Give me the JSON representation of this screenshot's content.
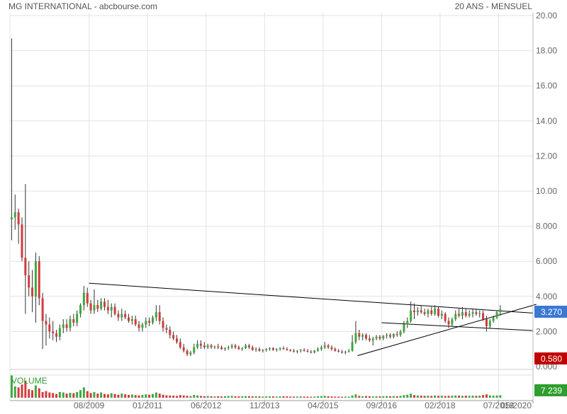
{
  "header": {
    "title": "MG INTERNATIONAL - abcbourse.com",
    "period": "20 ANS - MENSUEL"
  },
  "colors": {
    "up": "#3fa83f",
    "down": "#d23c3c",
    "grid": "#e3e3e3",
    "text": "#666666",
    "last_badge": "#3b78d4",
    "low_badge": "#c00000",
    "volume_badge": "#2e9e2e",
    "volume_label": "#2e9e2e",
    "trendline": "#000000"
  },
  "badges": {
    "last": "3.270",
    "low": "0.580",
    "volume": "7 239"
  },
  "volume_label": "VOLUME",
  "chart_data": {
    "type": "candlestick",
    "ylim": [
      0,
      20
    ],
    "yticks": [
      0,
      2,
      4,
      6,
      8,
      10,
      12,
      14,
      16,
      18,
      20
    ],
    "ytick_labels": [
      "0.000",
      "2.000",
      "4.000",
      "6.000",
      "8.000",
      "10.00",
      "12.00",
      "14.00",
      "16.00",
      "18.00",
      "20.00"
    ],
    "xtick_labels": [
      "08/2009",
      "01/2011",
      "06/2012",
      "11/2013",
      "04/2015",
      "09/2016",
      "02/2018",
      "07/2019",
      "05/2020"
    ],
    "xlim": [
      "2007-09",
      "2020-05"
    ],
    "xticks": [
      "2009-08",
      "2011-01",
      "2012-06",
      "2013-11",
      "2015-04",
      "2016-09",
      "2018-02",
      "2019-07",
      "2020-05"
    ],
    "start": "2007-09",
    "candles": [
      [
        8.4,
        18.7,
        7.2,
        8.5
      ],
      [
        8.5,
        9.8,
        7.8,
        8.8
      ],
      [
        8.8,
        9.0,
        7.0,
        8.1
      ],
      [
        8.1,
        8.5,
        6.0,
        6.2
      ],
      [
        6.2,
        10.4,
        3.0,
        5.2
      ],
      [
        5.2,
        6.0,
        4.0,
        4.5
      ],
      [
        4.5,
        5.5,
        3.1,
        4.0
      ],
      [
        4.0,
        6.5,
        2.5,
        6.0
      ],
      [
        6.0,
        6.3,
        3.5,
        3.9
      ],
      [
        3.9,
        4.2,
        1.0,
        2.6
      ],
      [
        2.6,
        3.0,
        1.2,
        2.4
      ],
      [
        2.4,
        2.8,
        1.6,
        2.0
      ],
      [
        2.0,
        2.6,
        1.5,
        1.9
      ],
      [
        1.9,
        2.1,
        1.4,
        1.7
      ],
      [
        1.7,
        2.4,
        1.5,
        2.2
      ],
      [
        2.2,
        2.7,
        1.9,
        2.4
      ],
      [
        2.4,
        2.7,
        2.0,
        2.2
      ],
      [
        2.2,
        2.9,
        2.0,
        2.7
      ],
      [
        2.7,
        3.0,
        2.3,
        2.5
      ],
      [
        2.5,
        3.2,
        2.3,
        3.0
      ],
      [
        3.0,
        3.6,
        2.8,
        3.5
      ],
      [
        3.5,
        4.6,
        3.2,
        4.2
      ],
      [
        4.2,
        4.5,
        3.4,
        3.6
      ],
      [
        3.6,
        3.8,
        3.0,
        3.2
      ],
      [
        3.2,
        4.4,
        3.0,
        3.5
      ],
      [
        3.5,
        3.8,
        3.1,
        3.3
      ],
      [
        3.3,
        3.9,
        3.2,
        3.7
      ],
      [
        3.7,
        3.9,
        3.2,
        3.4
      ],
      [
        3.4,
        3.8,
        3.0,
        3.2
      ],
      [
        3.2,
        3.6,
        2.8,
        3.4
      ],
      [
        3.4,
        3.6,
        2.9,
        3.0
      ],
      [
        3.0,
        3.2,
        2.6,
        2.8
      ],
      [
        2.8,
        3.3,
        2.6,
        3.0
      ],
      [
        3.0,
        3.2,
        2.7,
        2.8
      ],
      [
        2.8,
        3.0,
        2.5,
        2.6
      ],
      [
        2.6,
        2.9,
        2.4,
        2.7
      ],
      [
        2.7,
        2.9,
        2.3,
        2.4
      ],
      [
        2.4,
        2.6,
        2.0,
        2.2
      ],
      [
        2.2,
        2.5,
        2.0,
        2.4
      ],
      [
        2.4,
        2.8,
        2.2,
        2.6
      ],
      [
        2.6,
        2.8,
        2.3,
        2.5
      ],
      [
        2.5,
        2.9,
        2.4,
        2.8
      ],
      [
        2.8,
        3.5,
        2.6,
        3.1
      ],
      [
        3.1,
        3.5,
        2.4,
        2.6
      ],
      [
        2.6,
        2.8,
        2.0,
        2.2
      ],
      [
        2.2,
        2.4,
        1.9,
        2.1
      ],
      [
        2.1,
        2.3,
        1.6,
        1.8
      ],
      [
        1.8,
        2.0,
        1.5,
        1.6
      ],
      [
        1.6,
        1.8,
        1.3,
        1.4
      ],
      [
        1.4,
        1.6,
        1.0,
        1.1
      ],
      [
        1.1,
        1.3,
        0.8,
        0.9
      ],
      [
        0.9,
        1.0,
        0.6,
        0.7
      ],
      [
        0.7,
        0.9,
        0.6,
        0.8
      ],
      [
        0.8,
        1.3,
        0.7,
        1.1
      ],
      [
        1.1,
        1.5,
        1.0,
        1.3
      ],
      [
        1.3,
        1.5,
        1.0,
        1.2
      ],
      [
        1.2,
        1.4,
        1.0,
        1.1
      ],
      [
        1.1,
        1.3,
        1.0,
        1.2
      ],
      [
        1.2,
        1.3,
        1.0,
        1.1
      ],
      [
        1.1,
        1.2,
        1.0,
        1.15
      ],
      [
        1.15,
        1.3,
        1.0,
        1.1
      ],
      [
        1.1,
        1.2,
        0.95,
        1.0
      ],
      [
        1.0,
        1.1,
        0.9,
        1.05
      ],
      [
        1.05,
        1.2,
        0.95,
        1.1
      ],
      [
        1.1,
        1.3,
        1.0,
        1.2
      ],
      [
        1.2,
        1.3,
        1.0,
        1.1
      ],
      [
        1.1,
        1.2,
        0.95,
        1.0
      ],
      [
        1.0,
        1.1,
        0.9,
        1.05
      ],
      [
        1.05,
        1.3,
        1.0,
        1.2
      ],
      [
        1.2,
        1.3,
        1.0,
        1.1
      ],
      [
        1.1,
        1.2,
        0.9,
        0.95
      ],
      [
        0.95,
        1.1,
        0.85,
        1.0
      ],
      [
        1.0,
        1.1,
        0.85,
        0.9
      ],
      [
        0.9,
        1.0,
        0.8,
        0.95
      ],
      [
        0.95,
        1.05,
        0.85,
        1.0
      ],
      [
        1.0,
        1.1,
        0.9,
        1.05
      ],
      [
        1.05,
        1.1,
        0.9,
        0.95
      ],
      [
        0.95,
        1.05,
        0.85,
        1.0
      ],
      [
        1.0,
        1.1,
        0.9,
        1.05
      ],
      [
        1.05,
        1.15,
        0.95,
        1.0
      ],
      [
        1.0,
        1.1,
        0.9,
        0.95
      ],
      [
        0.95,
        1.0,
        0.85,
        0.9
      ],
      [
        0.9,
        1.0,
        0.8,
        0.85
      ],
      [
        0.85,
        0.95,
        0.75,
        0.9
      ],
      [
        0.9,
        1.0,
        0.8,
        0.95
      ],
      [
        0.95,
        1.05,
        0.85,
        0.9
      ],
      [
        0.9,
        1.0,
        0.8,
        0.85
      ],
      [
        0.85,
        0.95,
        0.75,
        0.8
      ],
      [
        0.8,
        0.95,
        0.75,
        0.9
      ],
      [
        0.9,
        1.1,
        0.85,
        1.0
      ],
      [
        1.0,
        1.2,
        0.9,
        1.1
      ],
      [
        1.1,
        1.4,
        1.0,
        1.2
      ],
      [
        1.2,
        1.3,
        1.0,
        1.1
      ],
      [
        1.1,
        1.2,
        0.9,
        1.0
      ],
      [
        1.0,
        1.1,
        0.85,
        0.9
      ],
      [
        0.9,
        1.0,
        0.8,
        0.85
      ],
      [
        0.85,
        0.95,
        0.75,
        0.8
      ],
      [
        0.8,
        0.9,
        0.7,
        0.85
      ],
      [
        0.85,
        1.0,
        0.8,
        0.9
      ],
      [
        0.9,
        1.8,
        0.85,
        1.4
      ],
      [
        1.4,
        2.6,
        1.3,
        1.9
      ],
      [
        1.9,
        2.1,
        1.5,
        1.7
      ],
      [
        1.7,
        1.9,
        1.5,
        1.8
      ],
      [
        1.8,
        1.9,
        1.5,
        1.6
      ],
      [
        1.6,
        1.8,
        1.4,
        1.5
      ],
      [
        1.5,
        1.7,
        1.2,
        1.6
      ],
      [
        1.6,
        1.8,
        1.5,
        1.7
      ],
      [
        1.7,
        1.8,
        1.5,
        1.6
      ],
      [
        1.6,
        1.8,
        1.5,
        1.75
      ],
      [
        1.75,
        1.9,
        1.6,
        1.8
      ],
      [
        1.8,
        1.9,
        1.6,
        1.7
      ],
      [
        1.7,
        1.9,
        1.6,
        1.85
      ],
      [
        1.85,
        2.0,
        1.7,
        1.8
      ],
      [
        1.8,
        2.1,
        1.7,
        2.0
      ],
      [
        2.0,
        2.6,
        1.9,
        2.4
      ],
      [
        2.4,
        2.8,
        2.2,
        2.6
      ],
      [
        2.6,
        3.7,
        2.5,
        3.2
      ],
      [
        3.2,
        3.6,
        2.7,
        3.1
      ],
      [
        3.1,
        3.4,
        2.9,
        3.2
      ],
      [
        3.2,
        3.5,
        3.0,
        3.1
      ],
      [
        3.1,
        3.3,
        2.9,
        3.0
      ],
      [
        3.0,
        3.3,
        2.8,
        3.2
      ],
      [
        3.2,
        3.4,
        2.9,
        3.0
      ],
      [
        3.0,
        3.5,
        2.9,
        3.3
      ],
      [
        3.3,
        3.4,
        2.8,
        2.9
      ],
      [
        2.9,
        3.2,
        2.7,
        3.0
      ],
      [
        3.0,
        3.1,
        2.5,
        2.6
      ],
      [
        2.6,
        2.8,
        2.2,
        2.4
      ],
      [
        2.4,
        2.8,
        2.3,
        2.7
      ],
      [
        2.7,
        3.2,
        2.6,
        3.0
      ],
      [
        3.0,
        3.3,
        2.8,
        2.9
      ],
      [
        2.9,
        3.4,
        2.7,
        3.1
      ],
      [
        3.1,
        3.3,
        2.8,
        2.9
      ],
      [
        2.9,
        3.2,
        2.8,
        3.0
      ],
      [
        3.0,
        3.3,
        2.8,
        3.1
      ],
      [
        3.1,
        3.3,
        2.9,
        3.0
      ],
      [
        3.0,
        3.2,
        2.8,
        3.05
      ],
      [
        3.05,
        3.2,
        2.6,
        2.7
      ],
      [
        2.7,
        2.9,
        2.0,
        2.3
      ],
      [
        2.3,
        2.7,
        2.2,
        2.6
      ],
      [
        2.6,
        2.9,
        2.5,
        2.8
      ],
      [
        2.8,
        3.2,
        2.7,
        3.1
      ],
      [
        3.1,
        3.5,
        2.9,
        3.27
      ]
    ],
    "volume": [
      120,
      60,
      55,
      70,
      90,
      45,
      40,
      65,
      50,
      30,
      35,
      28,
      25,
      20,
      30,
      28,
      22,
      26,
      24,
      30,
      40,
      55,
      35,
      25,
      30,
      22,
      28,
      20,
      18,
      24,
      20,
      16,
      22,
      18,
      15,
      17,
      14,
      12,
      15,
      18,
      16,
      20,
      28,
      22,
      16,
      13,
      12,
      11,
      10,
      14,
      12,
      10,
      9,
      15,
      12,
      9,
      8,
      9,
      8,
      7,
      8,
      7,
      8,
      9,
      10,
      8,
      7,
      8,
      9,
      8,
      7,
      8,
      7,
      6,
      7,
      8,
      7,
      6,
      7,
      8,
      7,
      6,
      6,
      6,
      7,
      6,
      6,
      5,
      6,
      8,
      9,
      10,
      8,
      7,
      6,
      6,
      5,
      6,
      6,
      12,
      18,
      10,
      8,
      9,
      8,
      7,
      8,
      7,
      8,
      9,
      8,
      9,
      8,
      10,
      14,
      16,
      22,
      14,
      12,
      11,
      10,
      11,
      10,
      12,
      10,
      11,
      9,
      10,
      11,
      12,
      11,
      10,
      11,
      10,
      11,
      10,
      11,
      14,
      18,
      12,
      11,
      12,
      13
    ],
    "trendlines": [
      {
        "from": [
          "2009-08",
          4.75
        ],
        "to": [
          "2020-05",
          3.05
        ]
      },
      {
        "from": [
          "2016-02",
          0.62
        ],
        "to": [
          "2020-06",
          3.55
        ]
      },
      {
        "from": [
          "2016-09",
          2.5
        ],
        "to": [
          "2020-05",
          2.05
        ]
      }
    ]
  }
}
